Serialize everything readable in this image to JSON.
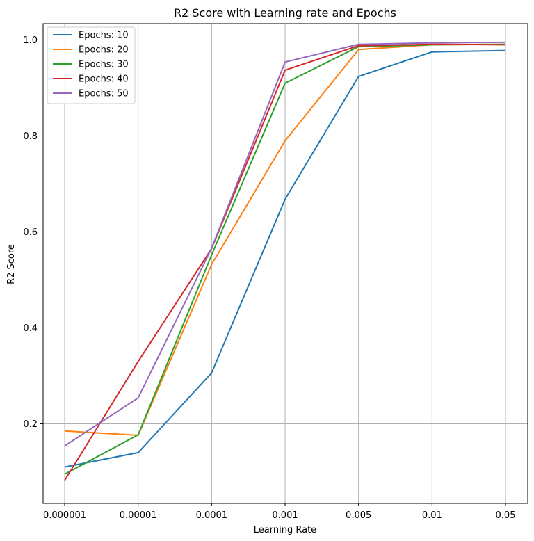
{
  "chart_data": {
    "type": "line",
    "title": "R2 Score with Learning rate and Epochs",
    "xlabel": "Learning Rate",
    "ylabel": "R2 Score",
    "categories": [
      "0.000001",
      "0.00001",
      "0.0001",
      "0.001",
      "0.005",
      "0.01",
      "0.05"
    ],
    "ylim": [
      0.034,
      1.034
    ],
    "yticks": [
      "0.2",
      "0.4",
      "0.6",
      "0.8",
      "1.0"
    ],
    "grid": true,
    "legend_position": "top-left",
    "series": [
      {
        "name": "Epochs: 10",
        "color": "#1f77b4",
        "values": [
          0.11,
          0.14,
          0.306,
          0.668,
          0.924,
          0.975,
          0.978
        ]
      },
      {
        "name": "Epochs: 20",
        "color": "#ff7f0e",
        "values": [
          0.185,
          0.176,
          0.532,
          0.79,
          0.98,
          0.99,
          0.991
        ]
      },
      {
        "name": "Epochs: 30",
        "color": "#2ca02c",
        "values": [
          0.095,
          0.177,
          0.552,
          0.91,
          0.986,
          0.99,
          0.991
        ]
      },
      {
        "name": "Epochs: 40",
        "color": "#d62728",
        "values": [
          0.082,
          0.33,
          0.565,
          0.937,
          0.988,
          0.991,
          0.99
        ]
      },
      {
        "name": "Epochs: 50",
        "color": "#9467bd",
        "values": [
          0.154,
          0.254,
          0.566,
          0.954,
          0.991,
          0.994,
          0.995
        ]
      }
    ]
  }
}
